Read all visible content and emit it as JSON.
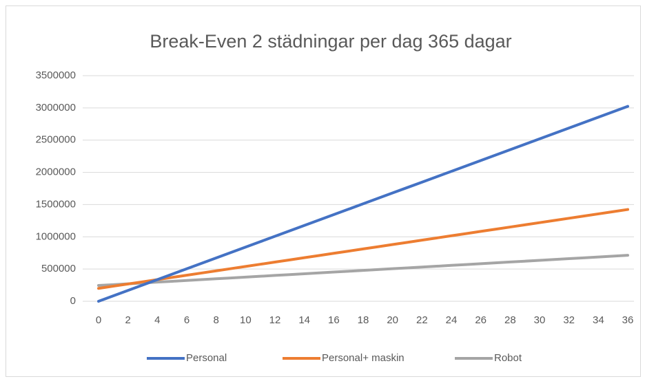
{
  "chart_data": {
    "type": "line",
    "title": "Break-Even 2 städningar per dag 365 dagar",
    "x": [
      0,
      1,
      2,
      3,
      4,
      5,
      6,
      7,
      8,
      9,
      10,
      11,
      12,
      13,
      14,
      15,
      16,
      17,
      18,
      19,
      20,
      21,
      22,
      23,
      24,
      25,
      26,
      27,
      28,
      29,
      30,
      31,
      32,
      33,
      34,
      35,
      36
    ],
    "xlim": [
      0,
      36
    ],
    "xticks": [
      0,
      2,
      4,
      6,
      8,
      10,
      12,
      14,
      16,
      18,
      20,
      22,
      24,
      26,
      28,
      30,
      32,
      34,
      36
    ],
    "ylim": [
      0,
      3500000
    ],
    "yticks": [
      0,
      500000,
      1000000,
      1500000,
      2000000,
      2500000,
      3000000,
      3500000
    ],
    "grid": true,
    "legend": "bottom",
    "series": [
      {
        "name": "Personal",
        "color": "#4472c4",
        "values": [
          0,
          84000,
          168000,
          252000,
          336000,
          420000,
          504000,
          588000,
          672000,
          756000,
          840000,
          924000,
          1008000,
          1092000,
          1176000,
          1260000,
          1344000,
          1428000,
          1512000,
          1596000,
          1680000,
          1764000,
          1848000,
          1932000,
          2016000,
          2100000,
          2184000,
          2268000,
          2352000,
          2436000,
          2520000,
          2604000,
          2688000,
          2772000,
          2856000,
          2940000,
          3024000
        ]
      },
      {
        "name": "Personal+ maskin",
        "color": "#ed7d31",
        "values": [
          200000,
          234000,
          268000,
          302000,
          336000,
          370000,
          404000,
          438000,
          472000,
          506000,
          540000,
          574000,
          608000,
          642000,
          676000,
          710000,
          744000,
          778000,
          812000,
          846000,
          880000,
          914000,
          948000,
          982000,
          1016000,
          1050000,
          1084000,
          1118000,
          1152000,
          1186000,
          1220000,
          1254000,
          1288000,
          1322000,
          1356000,
          1390000,
          1424000
        ]
      },
      {
        "name": "Robot",
        "color": "#a5a5a5",
        "values": [
          245000,
          258000,
          271000,
          284000,
          297000,
          310000,
          323000,
          336000,
          349000,
          362000,
          375000,
          388000,
          401000,
          414000,
          427000,
          440000,
          453000,
          466000,
          479000,
          492000,
          505000,
          518000,
          531000,
          544000,
          557000,
          570000,
          583000,
          596000,
          609000,
          622000,
          635000,
          648000,
          661000,
          674000,
          687000,
          700000,
          713000
        ]
      }
    ]
  }
}
